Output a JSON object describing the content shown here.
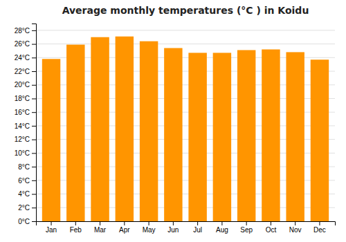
{
  "chart_data": {
    "type": "bar",
    "title": "Average monthly temperatures (°C ) in Koidu",
    "categories": [
      "Jan",
      "Feb",
      "Mar",
      "Apr",
      "May",
      "Jun",
      "Jul",
      "Aug",
      "Sep",
      "Oct",
      "Nov",
      "Dec"
    ],
    "values": [
      23.8,
      25.9,
      27.0,
      27.1,
      26.4,
      25.4,
      24.7,
      24.7,
      25.1,
      25.2,
      24.8,
      23.7
    ],
    "color": "#FF9500",
    "ylim": [
      0,
      29
    ],
    "yticks": [
      {
        "value": 0,
        "label": "0°C"
      },
      {
        "value": 2,
        "label": "2°C"
      },
      {
        "value": 4,
        "label": "4°C"
      },
      {
        "value": 6,
        "label": "6°C"
      },
      {
        "value": 8,
        "label": "8°C"
      },
      {
        "value": 10,
        "label": "10°C"
      },
      {
        "value": 12,
        "label": "12°C"
      },
      {
        "value": 14,
        "label": "14°C"
      },
      {
        "value": 16,
        "label": "16°C"
      },
      {
        "value": 18,
        "label": "18°C"
      },
      {
        "value": 20,
        "label": "20°C"
      },
      {
        "value": 22,
        "label": "22°C"
      },
      {
        "value": 24,
        "label": "24°C"
      },
      {
        "value": 26,
        "label": "26°C"
      },
      {
        "value": 28,
        "label": "28°C"
      }
    ],
    "grid": true
  }
}
